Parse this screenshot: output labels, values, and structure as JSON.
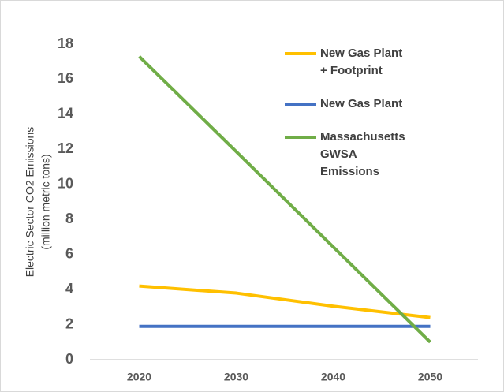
{
  "chart_data": {
    "type": "line",
    "ylabel": [
      "Electric Sector CO2 Emissions",
      "(million metric tons)"
    ],
    "categories": [
      "2020",
      "2030",
      "2040",
      "2050"
    ],
    "series": [
      {
        "name": "New Gas Plant + Footprint",
        "color": "#FFC000",
        "values": [
          4.2,
          3.8,
          3.05,
          2.4
        ]
      },
      {
        "name": "New Gas Plant",
        "color": "#4472C4",
        "values": [
          1.9,
          1.9,
          1.9,
          1.9
        ]
      },
      {
        "name": "Massachusetts GWSA Emissions",
        "color": "#70AD47",
        "values": [
          17.3,
          11.87,
          6.43,
          1.0
        ]
      }
    ],
    "ylim": [
      0,
      18
    ],
    "yticks": [
      0,
      2,
      4,
      6,
      8,
      10,
      12,
      14,
      16,
      18
    ],
    "grid": false
  }
}
